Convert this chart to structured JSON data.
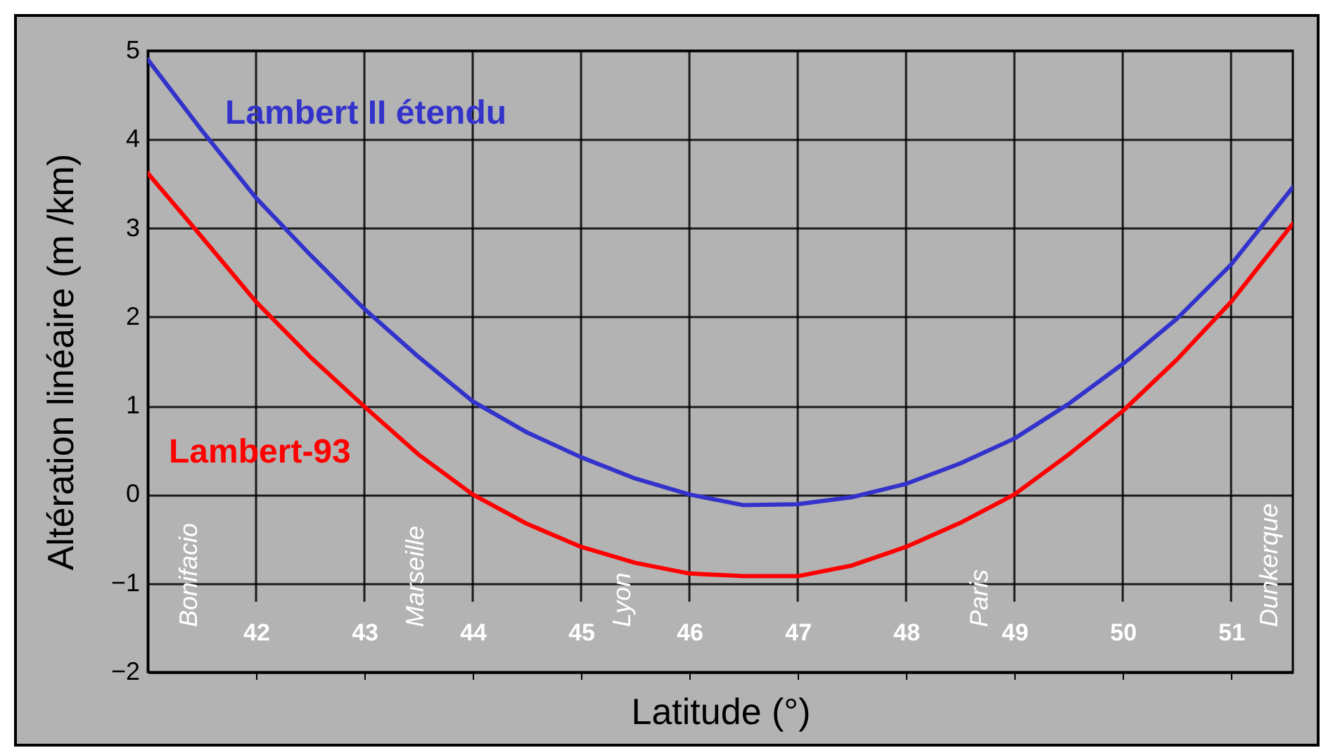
{
  "chart_data": {
    "type": "line",
    "xlabel": "Latitude (°)",
    "ylabel": "Altération linéaire (m /km)",
    "xlim": [
      41,
      51.57
    ],
    "ylim": [
      -2,
      5
    ],
    "xticks": [
      42,
      43,
      44,
      45,
      46,
      47,
      48,
      49,
      50,
      51
    ],
    "yticks": [
      -2,
      -1,
      0,
      1,
      2,
      3,
      4,
      5
    ],
    "grid": true,
    "legend": false,
    "line_style": "solid",
    "marker": "none",
    "series": [
      {
        "name": "Lambert II étendu",
        "color": "#3333cc",
        "x": [
          41,
          41.5,
          42,
          42.5,
          43,
          43.5,
          44,
          44.5,
          45,
          45.5,
          46,
          46.5,
          47,
          47.5,
          48,
          48.5,
          49,
          49.5,
          50,
          50.5,
          51,
          51.57
        ],
        "values": [
          4.9,
          4.1,
          3.34,
          2.7,
          2.09,
          1.55,
          1.05,
          0.7,
          0.42,
          0.18,
          0.0,
          -0.12,
          -0.11,
          -0.03,
          0.12,
          0.35,
          0.63,
          1.02,
          1.47,
          1.98,
          2.59,
          3.46
        ]
      },
      {
        "name": "Lambert-93",
        "color": "#ff0000",
        "x": [
          41,
          41.5,
          42,
          42.5,
          43,
          43.5,
          44,
          44.5,
          45,
          45.5,
          46,
          46.5,
          47,
          47.5,
          48,
          48.5,
          49,
          49.5,
          50,
          50.5,
          51,
          51.57
        ],
        "values": [
          3.62,
          2.9,
          2.17,
          1.55,
          0.99,
          0.45,
          0.0,
          -0.33,
          -0.59,
          -0.77,
          -0.89,
          -0.92,
          -0.92,
          -0.8,
          -0.59,
          -0.32,
          0.0,
          0.45,
          0.94,
          1.52,
          2.17,
          3.05
        ]
      }
    ],
    "annotations": [
      "Bonifacio",
      "Marseille",
      "Lyon",
      "Paris",
      "Dunkerque"
    ]
  }
}
